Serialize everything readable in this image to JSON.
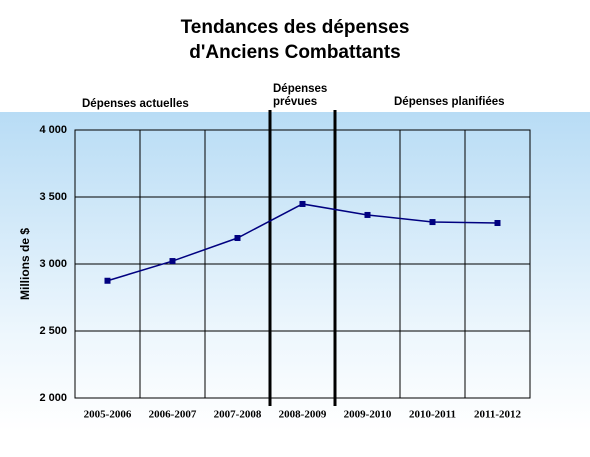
{
  "chart_data": {
    "type": "line",
    "title": [
      "Tendances des dépenses",
      "d'Anciens Combattants"
    ],
    "annotations": [
      [
        "Dépenses actuelles"
      ],
      [
        "Dépenses",
        "prévues"
      ],
      [
        "Dépenses planifiées"
      ]
    ],
    "y_label": "Millions de $",
    "categories": [
      "2005-2006",
      "2006-2007",
      "2007-2008",
      "2008-2009",
      "2009-2010",
      "2010-2011",
      "2011-2012"
    ],
    "series": [
      {
        "name": "Dépenses",
        "color": "#000080",
        "values": [
          2875,
          3022,
          3194,
          3448,
          3366,
          3313,
          3306
        ]
      }
    ],
    "ylim": [
      2000,
      4000
    ],
    "yticks": [
      {
        "value": 2000,
        "label": "2 000"
      },
      {
        "value": 2500,
        "label": "2 500"
      },
      {
        "value": 3000,
        "label": "3 000"
      },
      {
        "value": 3500,
        "label": "3 500"
      },
      {
        "value": 4000,
        "label": "4 000"
      }
    ],
    "grid": true
  }
}
